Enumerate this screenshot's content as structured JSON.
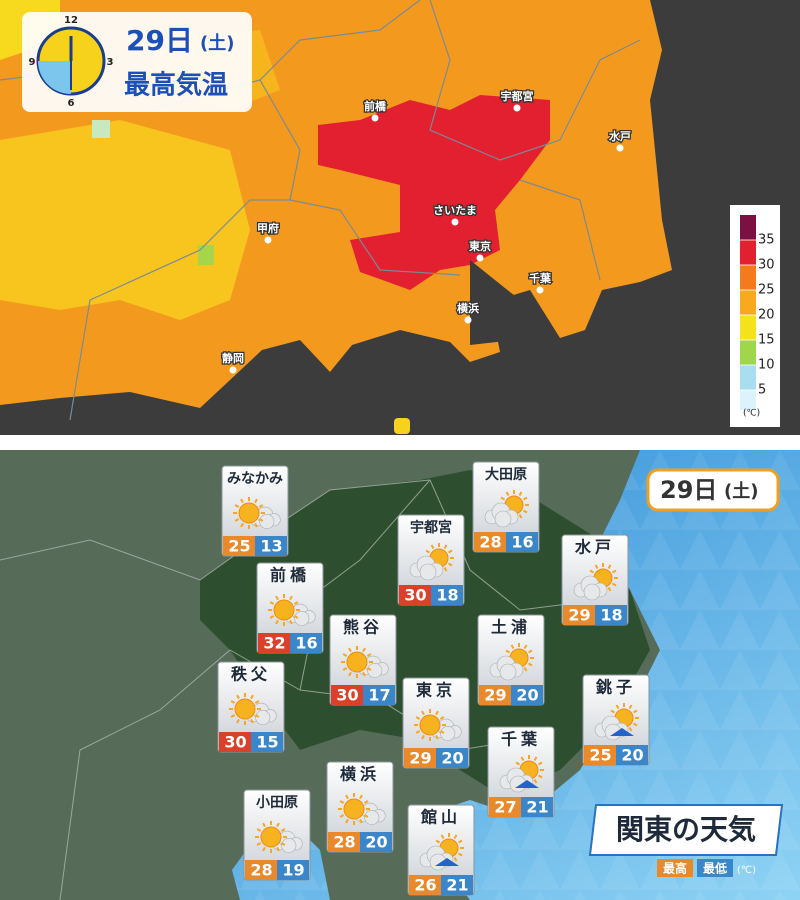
{
  "temperature_map": {
    "date": "29日",
    "weekday": "(土)",
    "title": "最高気温",
    "clock": {
      "labels": [
        "12",
        "3",
        "6",
        "9"
      ]
    },
    "cities": [
      "前橋",
      "宇都宮",
      "水戸",
      "さいたま",
      "甲府",
      "東京",
      "千葉",
      "横浜",
      "静岡"
    ],
    "legend": {
      "ticks": [
        35,
        30,
        25,
        20,
        15,
        10,
        5
      ],
      "unit": "(℃)",
      "colors": [
        "#7b1042",
        "#e3202f",
        "#f47a1c",
        "#f8a91d",
        "#f6e21c",
        "#9fd64a",
        "#a9def0",
        "#dcf3fb"
      ]
    }
  },
  "forecast": {
    "date": "29日",
    "weekday": "(土)",
    "title": "関東の天気",
    "high_label": "最高",
    "low_label": "最低",
    "unit": "(℃)",
    "stations": [
      {
        "name": "みなかみ",
        "icon": "sun-cloud",
        "high": 25,
        "low": 13,
        "high_color": "#e8892b"
      },
      {
        "name": "大田原",
        "icon": "cloud-sun",
        "high": 28,
        "low": 16,
        "high_color": "#e8892b"
      },
      {
        "name": "宇都宮",
        "icon": "cloud-sun",
        "high": 30,
        "low": 18,
        "high_color": "#d9412b"
      },
      {
        "name": "水戸",
        "icon": "cloud-sun",
        "high": 29,
        "low": 18,
        "high_color": "#e8892b"
      },
      {
        "name": "前橋",
        "icon": "sun-cloud",
        "high": 32,
        "low": 16,
        "high_color": "#d9412b"
      },
      {
        "name": "熊谷",
        "icon": "sun-cloud",
        "high": 30,
        "low": 17,
        "high_color": "#d9412b"
      },
      {
        "name": "土浦",
        "icon": "cloud-sun",
        "high": 29,
        "low": 20,
        "high_color": "#e8892b"
      },
      {
        "name": "秩父",
        "icon": "sun-cloud",
        "high": 30,
        "low": 15,
        "high_color": "#d9412b"
      },
      {
        "name": "東京",
        "icon": "sun-cloud",
        "high": 29,
        "low": 20,
        "high_color": "#e8892b"
      },
      {
        "name": "銚子",
        "icon": "cloud-sun-rain",
        "high": 25,
        "low": 20,
        "high_color": "#e8892b"
      },
      {
        "name": "千葉",
        "icon": "cloud-sun-rain",
        "high": 27,
        "low": 21,
        "high_color": "#e8892b"
      },
      {
        "name": "横浜",
        "icon": "sun-cloud",
        "high": 28,
        "low": 20,
        "high_color": "#e8892b"
      },
      {
        "name": "小田原",
        "icon": "sun-cloud",
        "high": 28,
        "low": 19,
        "high_color": "#e8892b"
      },
      {
        "name": "館山",
        "icon": "cloud-sun-rain",
        "high": 26,
        "low": 21,
        "high_color": "#e8892b"
      }
    ]
  }
}
